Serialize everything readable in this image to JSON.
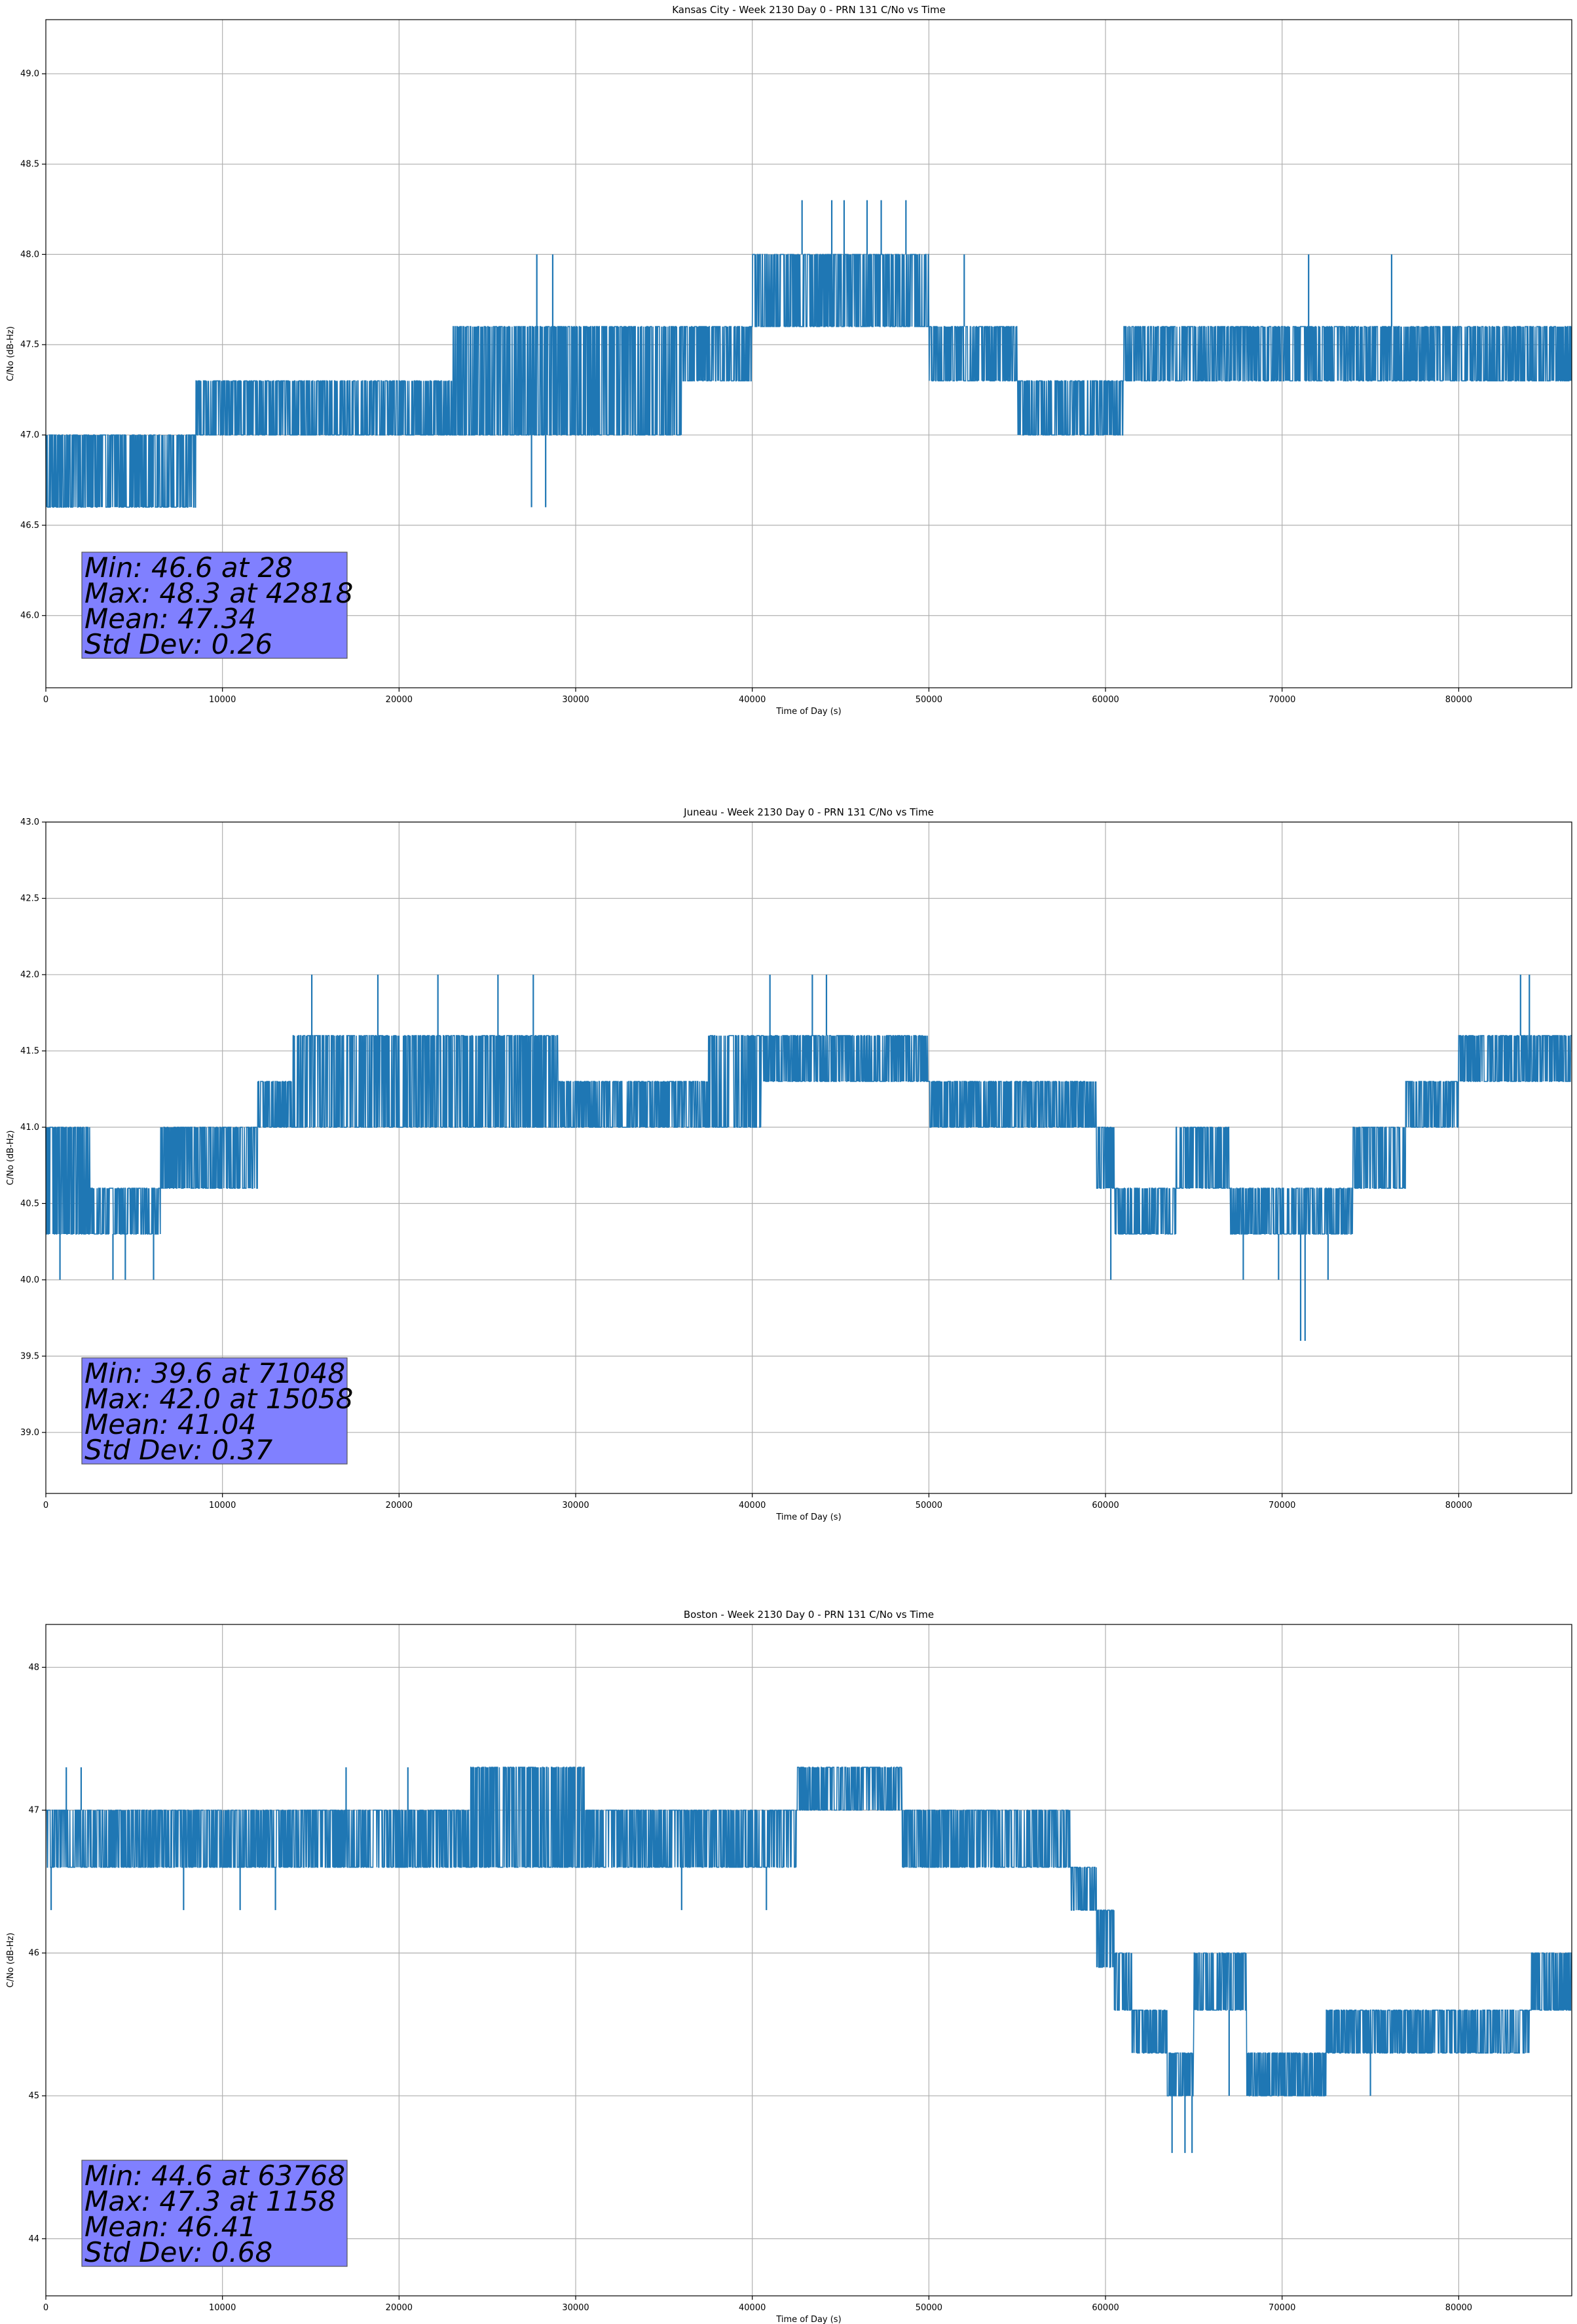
{
  "figure": {
    "layout": "3 stacked subplots"
  },
  "chart_data": [
    {
      "type": "line",
      "title": "Kansas City - Week 2130 Day 0 - PRN 131 C/No vs Time",
      "xlabel": "Time of Day (s)",
      "ylabel": "C/No (dB-Hz)",
      "xlim": [
        0,
        86400
      ],
      "ylim": [
        45.6,
        49.3
      ],
      "xticks": [
        0,
        10000,
        20000,
        30000,
        40000,
        50000,
        60000,
        70000,
        80000
      ],
      "xtick_labels": [
        "0",
        "10000",
        "20000",
        "30000",
        "40000",
        "50000",
        "60000",
        "70000",
        "80000"
      ],
      "yticks": [
        46.0,
        46.5,
        47.0,
        47.5,
        48.0,
        48.5,
        49.0
      ],
      "ytick_labels": [
        "46.0",
        "46.5",
        "47.0",
        "47.5",
        "48.0",
        "48.5",
        "49.0"
      ],
      "grid": true,
      "series_color": "#1f77b4",
      "band_profile": [
        {
          "x0": 0,
          "x1": 8500,
          "lo": 46.6,
          "hi": 47.0
        },
        {
          "x0": 8500,
          "x1": 23000,
          "lo": 47.0,
          "hi": 47.3
        },
        {
          "x0": 23000,
          "x1": 36000,
          "lo": 47.0,
          "hi": 47.6
        },
        {
          "x0": 36000,
          "x1": 40000,
          "lo": 47.3,
          "hi": 47.6
        },
        {
          "x0": 40000,
          "x1": 50000,
          "lo": 47.6,
          "hi": 48.0
        },
        {
          "x0": 50000,
          "x1": 55000,
          "lo": 47.3,
          "hi": 47.6
        },
        {
          "x0": 55000,
          "x1": 61000,
          "lo": 47.0,
          "hi": 47.3
        },
        {
          "x0": 61000,
          "x1": 86400,
          "lo": 47.3,
          "hi": 47.6
        }
      ],
      "spikes": [
        {
          "x": 28,
          "y": 46.6
        },
        {
          "x": 27500,
          "y": 46.6
        },
        {
          "x": 28300,
          "y": 46.6
        },
        {
          "x": 27800,
          "y": 48.0
        },
        {
          "x": 28700,
          "y": 48.0
        },
        {
          "x": 42818,
          "y": 48.3
        },
        {
          "x": 44500,
          "y": 48.3
        },
        {
          "x": 45200,
          "y": 48.3
        },
        {
          "x": 46500,
          "y": 48.3
        },
        {
          "x": 47300,
          "y": 48.3
        },
        {
          "x": 48700,
          "y": 48.3
        },
        {
          "x": 47000,
          "y": 48.0
        },
        {
          "x": 52000,
          "y": 48.0
        },
        {
          "x": 71500,
          "y": 48.0
        },
        {
          "x": 76200,
          "y": 48.0
        }
      ],
      "stats": {
        "lines": [
          "Min: 46.6 at 28",
          "Max: 48.3 at 42818",
          "Mean: 47.34",
          "Std Dev: 0.26"
        ],
        "min": 46.6,
        "min_at": 28,
        "max": 48.3,
        "max_at": 42818,
        "mean": 47.34,
        "std": 0.26,
        "box_color": "#8080ff"
      }
    },
    {
      "type": "line",
      "title": "Juneau - Week 2130 Day 0 - PRN 131 C/No vs Time",
      "xlabel": "Time of Day (s)",
      "ylabel": "C/No (dB-Hz)",
      "xlim": [
        0,
        86400
      ],
      "ylim": [
        38.6,
        43.0
      ],
      "xticks": [
        0,
        10000,
        20000,
        30000,
        40000,
        50000,
        60000,
        70000,
        80000
      ],
      "xtick_labels": [
        "0",
        "10000",
        "20000",
        "30000",
        "40000",
        "50000",
        "60000",
        "70000",
        "80000"
      ],
      "yticks": [
        39.0,
        39.5,
        40.0,
        40.5,
        41.0,
        41.5,
        42.0,
        42.5,
        43.0
      ],
      "ytick_labels": [
        "39.0",
        "39.5",
        "40.0",
        "40.5",
        "41.0",
        "41.5",
        "42.0",
        "42.5",
        "43.0"
      ],
      "grid": true,
      "series_color": "#1f77b4",
      "band_profile": [
        {
          "x0": 0,
          "x1": 2500,
          "lo": 40.3,
          "hi": 41.0
        },
        {
          "x0": 2500,
          "x1": 6500,
          "lo": 40.3,
          "hi": 40.6
        },
        {
          "x0": 6500,
          "x1": 12000,
          "lo": 40.6,
          "hi": 41.0
        },
        {
          "x0": 12000,
          "x1": 14000,
          "lo": 41.0,
          "hi": 41.3
        },
        {
          "x0": 14000,
          "x1": 29000,
          "lo": 41.0,
          "hi": 41.6
        },
        {
          "x0": 29000,
          "x1": 37500,
          "lo": 41.0,
          "hi": 41.3
        },
        {
          "x0": 37500,
          "x1": 40500,
          "lo": 41.0,
          "hi": 41.6
        },
        {
          "x0": 40500,
          "x1": 50000,
          "lo": 41.3,
          "hi": 41.6
        },
        {
          "x0": 50000,
          "x1": 59500,
          "lo": 41.0,
          "hi": 41.3
        },
        {
          "x0": 59500,
          "x1": 60500,
          "lo": 40.6,
          "hi": 41.0
        },
        {
          "x0": 60500,
          "x1": 64000,
          "lo": 40.3,
          "hi": 40.6
        },
        {
          "x0": 64000,
          "x1": 67000,
          "lo": 40.6,
          "hi": 41.0
        },
        {
          "x0": 67000,
          "x1": 74000,
          "lo": 40.3,
          "hi": 40.6
        },
        {
          "x0": 74000,
          "x1": 77000,
          "lo": 40.6,
          "hi": 41.0
        },
        {
          "x0": 77000,
          "x1": 80000,
          "lo": 41.0,
          "hi": 41.3
        },
        {
          "x0": 80000,
          "x1": 86400,
          "lo": 41.3,
          "hi": 41.6
        }
      ],
      "spikes": [
        {
          "x": 800,
          "y": 40.0
        },
        {
          "x": 3800,
          "y": 40.0
        },
        {
          "x": 4500,
          "y": 40.0
        },
        {
          "x": 6100,
          "y": 40.0
        },
        {
          "x": 15058,
          "y": 42.0
        },
        {
          "x": 18800,
          "y": 42.0
        },
        {
          "x": 22200,
          "y": 42.0
        },
        {
          "x": 25600,
          "y": 42.0
        },
        {
          "x": 27600,
          "y": 42.0
        },
        {
          "x": 41000,
          "y": 42.0
        },
        {
          "x": 43400,
          "y": 42.0
        },
        {
          "x": 44200,
          "y": 42.0
        },
        {
          "x": 60300,
          "y": 40.0
        },
        {
          "x": 67800,
          "y": 40.0
        },
        {
          "x": 69800,
          "y": 40.0
        },
        {
          "x": 71048,
          "y": 39.6
        },
        {
          "x": 71300,
          "y": 39.6
        },
        {
          "x": 72600,
          "y": 40.0
        },
        {
          "x": 83500,
          "y": 42.0
        },
        {
          "x": 84000,
          "y": 42.0
        }
      ],
      "stats": {
        "lines": [
          "Min: 39.6 at 71048",
          "Max: 42.0 at 15058",
          "Mean: 41.04",
          "Std Dev: 0.37"
        ],
        "min": 39.6,
        "min_at": 71048,
        "max": 42.0,
        "max_at": 15058,
        "mean": 41.04,
        "std": 0.37,
        "box_color": "#8080ff"
      }
    },
    {
      "type": "line",
      "title": "Boston - Week 2130 Day 0 - PRN 131 C/No vs Time",
      "xlabel": "Time of Day (s)",
      "ylabel": "C/No (dB-Hz)",
      "xlim": [
        0,
        86400
      ],
      "ylim": [
        43.6,
        48.3
      ],
      "xticks": [
        0,
        10000,
        20000,
        30000,
        40000,
        50000,
        60000,
        70000,
        80000
      ],
      "xtick_labels": [
        "0",
        "10000",
        "20000",
        "30000",
        "40000",
        "50000",
        "60000",
        "70000",
        "80000"
      ],
      "yticks": [
        44,
        45,
        46,
        47,
        48
      ],
      "ytick_labels": [
        "44",
        "45",
        "46",
        "47",
        "48"
      ],
      "grid": true,
      "series_color": "#1f77b4",
      "band_profile": [
        {
          "x0": 0,
          "x1": 24000,
          "lo": 46.6,
          "hi": 47.0
        },
        {
          "x0": 24000,
          "x1": 30500,
          "lo": 46.6,
          "hi": 47.3
        },
        {
          "x0": 30500,
          "x1": 42500,
          "lo": 46.6,
          "hi": 47.0
        },
        {
          "x0": 42500,
          "x1": 43500,
          "lo": 47.0,
          "hi": 47.3
        },
        {
          "x0": 43500,
          "x1": 46500,
          "lo": 47.0,
          "hi": 47.3
        },
        {
          "x0": 46500,
          "x1": 48500,
          "lo": 47.0,
          "hi": 47.3
        },
        {
          "x0": 48500,
          "x1": 58000,
          "lo": 46.6,
          "hi": 47.0
        },
        {
          "x0": 58000,
          "x1": 59500,
          "lo": 46.3,
          "hi": 46.6
        },
        {
          "x0": 59500,
          "x1": 60500,
          "lo": 45.9,
          "hi": 46.3
        },
        {
          "x0": 60500,
          "x1": 61500,
          "lo": 45.6,
          "hi": 46.0
        },
        {
          "x0": 61500,
          "x1": 63500,
          "lo": 45.3,
          "hi": 45.6
        },
        {
          "x0": 63500,
          "x1": 65000,
          "lo": 45.0,
          "hi": 45.3
        },
        {
          "x0": 65000,
          "x1": 68000,
          "lo": 45.6,
          "hi": 46.0
        },
        {
          "x0": 68000,
          "x1": 72500,
          "lo": 45.0,
          "hi": 45.3
        },
        {
          "x0": 72500,
          "x1": 84000,
          "lo": 45.3,
          "hi": 45.6
        },
        {
          "x0": 84000,
          "x1": 86400,
          "lo": 45.6,
          "hi": 46.0
        }
      ],
      "spikes": [
        {
          "x": 300,
          "y": 46.3
        },
        {
          "x": 1158,
          "y": 47.3
        },
        {
          "x": 2000,
          "y": 47.3
        },
        {
          "x": 7800,
          "y": 46.3
        },
        {
          "x": 11000,
          "y": 46.3
        },
        {
          "x": 13000,
          "y": 46.3
        },
        {
          "x": 17000,
          "y": 47.3
        },
        {
          "x": 20500,
          "y": 47.3
        },
        {
          "x": 36000,
          "y": 46.3
        },
        {
          "x": 40800,
          "y": 46.3
        },
        {
          "x": 63768,
          "y": 44.6
        },
        {
          "x": 64500,
          "y": 44.6
        },
        {
          "x": 64900,
          "y": 44.6
        },
        {
          "x": 67000,
          "y": 45.0
        },
        {
          "x": 75000,
          "y": 45.0
        },
        {
          "x": 79500,
          "y": 45.3
        }
      ],
      "stats": {
        "lines": [
          "Min: 44.6 at 63768",
          "Max: 47.3 at 1158",
          "Mean: 46.41",
          "Std Dev: 0.68"
        ],
        "min": 44.6,
        "min_at": 63768,
        "max": 47.3,
        "max_at": 1158,
        "mean": 46.41,
        "std": 0.68,
        "box_color": "#8080ff"
      }
    }
  ]
}
